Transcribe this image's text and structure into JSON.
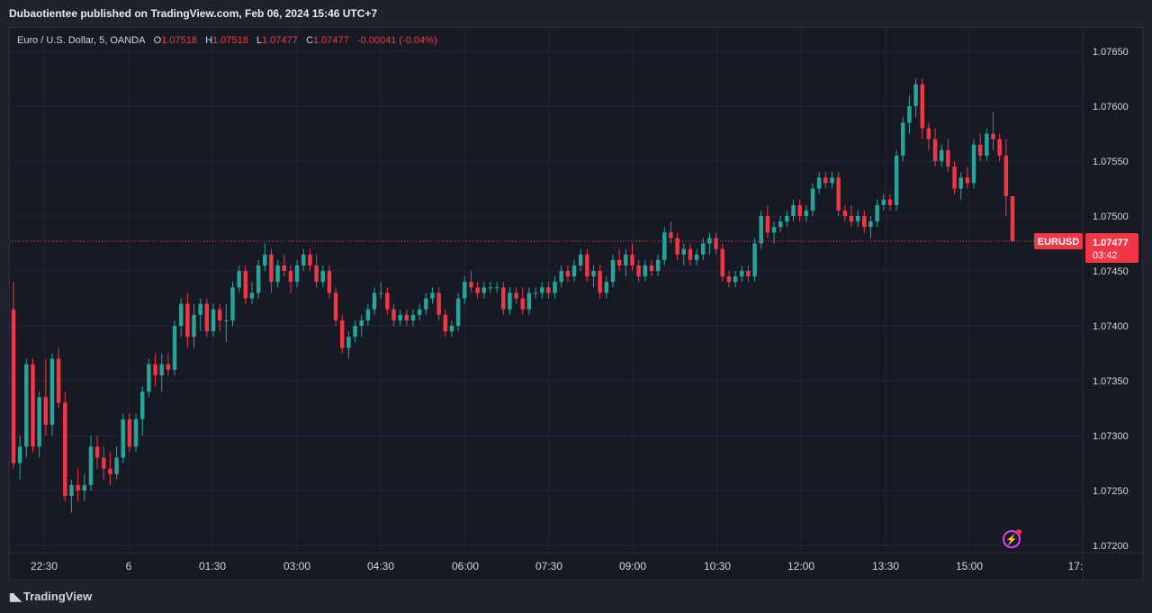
{
  "header": {
    "publisher_text": "Dubaotientee published on TradingView.com, Feb 06, 2024 15:46 UTC+7"
  },
  "legend": {
    "symbol": "Euro / U.S. Dollar, 5, OANDA",
    "o_label": "O",
    "o_value": "1.07518",
    "h_label": "H",
    "h_value": "1.07518",
    "l_label": "L",
    "l_value": "1.07477",
    "c_label": "C",
    "c_value": "1.07477",
    "change": "-0.00041 (-0.04%)"
  },
  "price_tag": {
    "symbol": "EURUSD",
    "price": "1.07477",
    "countdown": "03:42"
  },
  "footer": {
    "logo_text": "TradingView"
  },
  "colors": {
    "up": "#26a69a",
    "down": "#f23645",
    "background": "#161a25",
    "grid": "#232734",
    "text": "#d1d4dc"
  },
  "chart_data": {
    "type": "candlestick",
    "interval_minutes": 5,
    "y_ticks": [
      "1.07650",
      "1.07600",
      "1.07550",
      "1.07500",
      "1.07450",
      "1.07400",
      "1.07350",
      "1.07300",
      "1.07250",
      "1.07200"
    ],
    "ylim": [
      1.0719,
      1.07685
    ],
    "x_ticks": [
      "22:30",
      "6",
      "01:30",
      "03:00",
      "04:30",
      "06:00",
      "07:30",
      "09:00",
      "10:30",
      "12:00",
      "13:30",
      "15:00",
      "17:"
    ],
    "last_price": 1.07477,
    "candles": [
      [
        1.07415,
        1.0744,
        1.0727,
        1.07275
      ],
      [
        1.07275,
        1.073,
        1.0726,
        1.0729
      ],
      [
        1.0729,
        1.0737,
        1.0728,
        1.07365
      ],
      [
        1.07365,
        1.0737,
        1.07285,
        1.0729
      ],
      [
        1.0729,
        1.0734,
        1.0728,
        1.07335
      ],
      [
        1.07335,
        1.0737,
        1.073,
        1.0731
      ],
      [
        1.0731,
        1.07375,
        1.073,
        1.0737
      ],
      [
        1.0737,
        1.0738,
        1.07325,
        1.0733
      ],
      [
        1.0733,
        1.0734,
        1.0724,
        1.07245
      ],
      [
        1.07245,
        1.0726,
        1.0723,
        1.07255
      ],
      [
        1.07255,
        1.0727,
        1.0724,
        1.0725
      ],
      [
        1.0725,
        1.07265,
        1.0724,
        1.07255
      ],
      [
        1.07255,
        1.073,
        1.0725,
        1.0729
      ],
      [
        1.0729,
        1.073,
        1.0727,
        1.0728
      ],
      [
        1.0728,
        1.0729,
        1.0726,
        1.0727
      ],
      [
        1.0727,
        1.07285,
        1.07255,
        1.07265
      ],
      [
        1.07265,
        1.0729,
        1.0726,
        1.0728
      ],
      [
        1.0728,
        1.0732,
        1.07275,
        1.07315
      ],
      [
        1.07315,
        1.0732,
        1.07285,
        1.0729
      ],
      [
        1.0729,
        1.0732,
        1.07285,
        1.07315
      ],
      [
        1.07315,
        1.07345,
        1.073,
        1.0734
      ],
      [
        1.0734,
        1.0737,
        1.07335,
        1.07365
      ],
      [
        1.07365,
        1.07375,
        1.07345,
        1.07355
      ],
      [
        1.07355,
        1.07375,
        1.0734,
        1.07365
      ],
      [
        1.07365,
        1.07375,
        1.07355,
        1.0736
      ],
      [
        1.0736,
        1.07405,
        1.07355,
        1.074
      ],
      [
        1.074,
        1.07425,
        1.0739,
        1.0742
      ],
      [
        1.0742,
        1.0743,
        1.0738,
        1.0739
      ],
      [
        1.0739,
        1.0742,
        1.0738,
        1.0741
      ],
      [
        1.0741,
        1.07425,
        1.07395,
        1.0742
      ],
      [
        1.0742,
        1.07425,
        1.0739,
        1.07395
      ],
      [
        1.07395,
        1.0742,
        1.0739,
        1.07415
      ],
      [
        1.07415,
        1.0742,
        1.07395,
        1.07405
      ],
      [
        1.07405,
        1.0742,
        1.07385,
        1.07405
      ],
      [
        1.07405,
        1.0744,
        1.074,
        1.07435
      ],
      [
        1.07435,
        1.07455,
        1.0743,
        1.0745
      ],
      [
        1.0745,
        1.07455,
        1.0742,
        1.07425
      ],
      [
        1.07425,
        1.0744,
        1.0742,
        1.0743
      ],
      [
        1.0743,
        1.0746,
        1.07425,
        1.07455
      ],
      [
        1.07455,
        1.07475,
        1.0745,
        1.07465
      ],
      [
        1.07465,
        1.0747,
        1.0743,
        1.0744
      ],
      [
        1.0744,
        1.0746,
        1.07435,
        1.07455
      ],
      [
        1.07455,
        1.07465,
        1.07445,
        1.0745
      ],
      [
        1.0745,
        1.07455,
        1.0743,
        1.0744
      ],
      [
        1.0744,
        1.0746,
        1.07435,
        1.07455
      ],
      [
        1.07455,
        1.0747,
        1.0745,
        1.07465
      ],
      [
        1.07465,
        1.0747,
        1.0745,
        1.07455
      ],
      [
        1.07455,
        1.07465,
        1.07435,
        1.0744
      ],
      [
        1.0744,
        1.07455,
        1.07435,
        1.0745
      ],
      [
        1.0745,
        1.07455,
        1.07425,
        1.0743
      ],
      [
        1.0743,
        1.07435,
        1.074,
        1.07405
      ],
      [
        1.07405,
        1.0741,
        1.07375,
        1.0738
      ],
      [
        1.0738,
        1.07395,
        1.0737,
        1.0739
      ],
      [
        1.0739,
        1.07405,
        1.07385,
        1.074
      ],
      [
        1.074,
        1.0741,
        1.0739,
        1.07405
      ],
      [
        1.07405,
        1.0742,
        1.074,
        1.07415
      ],
      [
        1.07415,
        1.07435,
        1.0741,
        1.0743
      ],
      [
        1.0743,
        1.0744,
        1.07425,
        1.0743
      ],
      [
        1.0743,
        1.07435,
        1.0741,
        1.07415
      ],
      [
        1.07415,
        1.0742,
        1.074,
        1.07405
      ],
      [
        1.07405,
        1.07415,
        1.074,
        1.0741
      ],
      [
        1.0741,
        1.07415,
        1.074,
        1.07405
      ],
      [
        1.07405,
        1.07415,
        1.074,
        1.0741
      ],
      [
        1.0741,
        1.0742,
        1.07405,
        1.07415
      ],
      [
        1.07415,
        1.0743,
        1.0741,
        1.07425
      ],
      [
        1.07425,
        1.07435,
        1.0742,
        1.0743
      ],
      [
        1.0743,
        1.07435,
        1.07405,
        1.0741
      ],
      [
        1.0741,
        1.07415,
        1.0739,
        1.07395
      ],
      [
        1.07395,
        1.07405,
        1.0739,
        1.074
      ],
      [
        1.074,
        1.0743,
        1.07395,
        1.07425
      ],
      [
        1.07425,
        1.07445,
        1.0742,
        1.0744
      ],
      [
        1.0744,
        1.0745,
        1.0743,
        1.07435
      ],
      [
        1.07435,
        1.0744,
        1.07425,
        1.0743
      ],
      [
        1.0743,
        1.0744,
        1.07425,
        1.07435
      ],
      [
        1.07435,
        1.0744,
        1.0743,
        1.07435
      ],
      [
        1.07435,
        1.0744,
        1.0743,
        1.07435
      ],
      [
        1.07435,
        1.0744,
        1.0741,
        1.07415
      ],
      [
        1.07415,
        1.07435,
        1.0741,
        1.0743
      ],
      [
        1.0743,
        1.07435,
        1.0742,
        1.07425
      ],
      [
        1.07425,
        1.07435,
        1.0741,
        1.07415
      ],
      [
        1.07415,
        1.07435,
        1.0741,
        1.0743
      ],
      [
        1.0743,
        1.07435,
        1.07425,
        1.0743
      ],
      [
        1.0743,
        1.0744,
        1.07425,
        1.07435
      ],
      [
        1.07435,
        1.0744,
        1.07425,
        1.0743
      ],
      [
        1.0743,
        1.07445,
        1.07425,
        1.0744
      ],
      [
        1.0744,
        1.07455,
        1.07435,
        1.0745
      ],
      [
        1.0745,
        1.07455,
        1.0744,
        1.07445
      ],
      [
        1.07445,
        1.0746,
        1.0744,
        1.07455
      ],
      [
        1.07455,
        1.0747,
        1.0745,
        1.07465
      ],
      [
        1.07465,
        1.0747,
        1.0744,
        1.07445
      ],
      [
        1.07445,
        1.07455,
        1.07435,
        1.0745
      ],
      [
        1.0745,
        1.07455,
        1.07425,
        1.0743
      ],
      [
        1.0743,
        1.07445,
        1.07425,
        1.0744
      ],
      [
        1.0744,
        1.07465,
        1.07435,
        1.0746
      ],
      [
        1.0746,
        1.0747,
        1.0745,
        1.07455
      ],
      [
        1.07455,
        1.0747,
        1.07445,
        1.07465
      ],
      [
        1.07465,
        1.07475,
        1.0745,
        1.07455
      ],
      [
        1.07455,
        1.0746,
        1.0744,
        1.07445
      ],
      [
        1.07445,
        1.0746,
        1.0744,
        1.07455
      ],
      [
        1.07455,
        1.0746,
        1.07445,
        1.0745
      ],
      [
        1.0745,
        1.07465,
        1.07445,
        1.0746
      ],
      [
        1.0746,
        1.0749,
        1.07455,
        1.07485
      ],
      [
        1.07485,
        1.07495,
        1.07475,
        1.0748
      ],
      [
        1.0748,
        1.07485,
        1.0746,
        1.07465
      ],
      [
        1.07465,
        1.07475,
        1.07455,
        1.0747
      ],
      [
        1.0747,
        1.07475,
        1.07455,
        1.0746
      ],
      [
        1.0746,
        1.0747,
        1.07455,
        1.07465
      ],
      [
        1.07465,
        1.0748,
        1.0746,
        1.07475
      ],
      [
        1.07475,
        1.07485,
        1.07465,
        1.0748
      ],
      [
        1.0748,
        1.07485,
        1.07465,
        1.0747
      ],
      [
        1.0747,
        1.07475,
        1.0744,
        1.07445
      ],
      [
        1.07445,
        1.0745,
        1.07435,
        1.0744
      ],
      [
        1.0744,
        1.0745,
        1.07435,
        1.07445
      ],
      [
        1.07445,
        1.07455,
        1.0744,
        1.0745
      ],
      [
        1.0745,
        1.07455,
        1.0744,
        1.07445
      ],
      [
        1.07445,
        1.0748,
        1.0744,
        1.07475
      ],
      [
        1.07475,
        1.07505,
        1.0747,
        1.075
      ],
      [
        1.075,
        1.0751,
        1.0748,
        1.07485
      ],
      [
        1.07485,
        1.07495,
        1.07475,
        1.0749
      ],
      [
        1.0749,
        1.075,
        1.07485,
        1.07495
      ],
      [
        1.07495,
        1.07505,
        1.0749,
        1.075
      ],
      [
        1.075,
        1.07515,
        1.07495,
        1.0751
      ],
      [
        1.0751,
        1.07515,
        1.07495,
        1.075
      ],
      [
        1.075,
        1.0751,
        1.07495,
        1.07505
      ],
      [
        1.07505,
        1.0753,
        1.075,
        1.07525
      ],
      [
        1.07525,
        1.0754,
        1.0752,
        1.07535
      ],
      [
        1.07535,
        1.0754,
        1.07525,
        1.0753
      ],
      [
        1.0753,
        1.0754,
        1.07525,
        1.07535
      ],
      [
        1.07535,
        1.0754,
        1.075,
        1.07505
      ],
      [
        1.07505,
        1.0751,
        1.07495,
        1.075
      ],
      [
        1.075,
        1.0751,
        1.0749,
        1.07495
      ],
      [
        1.07495,
        1.07505,
        1.0749,
        1.075
      ],
      [
        1.075,
        1.07505,
        1.07485,
        1.0749
      ],
      [
        1.0749,
        1.075,
        1.0748,
        1.07495
      ],
      [
        1.07495,
        1.07515,
        1.0749,
        1.0751
      ],
      [
        1.0751,
        1.0752,
        1.07505,
        1.07515
      ],
      [
        1.07515,
        1.0752,
        1.07505,
        1.0751
      ],
      [
        1.0751,
        1.0756,
        1.07505,
        1.07555
      ],
      [
        1.07555,
        1.0759,
        1.0755,
        1.07585
      ],
      [
        1.07585,
        1.0761,
        1.07575,
        1.076
      ],
      [
        1.076,
        1.07625,
        1.0759,
        1.0762
      ],
      [
        1.0762,
        1.07625,
        1.0757,
        1.0758
      ],
      [
        1.0758,
        1.07585,
        1.0756,
        1.0757
      ],
      [
        1.0757,
        1.0758,
        1.07545,
        1.0755
      ],
      [
        1.0755,
        1.07565,
        1.07545,
        1.0756
      ],
      [
        1.0756,
        1.0757,
        1.0754,
        1.07545
      ],
      [
        1.07545,
        1.0755,
        1.0752,
        1.07525
      ],
      [
        1.07525,
        1.0754,
        1.07515,
        1.07535
      ],
      [
        1.07535,
        1.07545,
        1.07525,
        1.0753
      ],
      [
        1.0753,
        1.0757,
        1.07525,
        1.07565
      ],
      [
        1.07565,
        1.07575,
        1.0755,
        1.07555
      ],
      [
        1.07555,
        1.0758,
        1.0755,
        1.07575
      ],
      [
        1.07575,
        1.07595,
        1.0756,
        1.0757
      ],
      [
        1.0757,
        1.07575,
        1.0755,
        1.07555
      ],
      [
        1.07555,
        1.0757,
        1.075,
        1.07518
      ],
      [
        1.07518,
        1.07518,
        1.07477,
        1.07477
      ]
    ]
  }
}
